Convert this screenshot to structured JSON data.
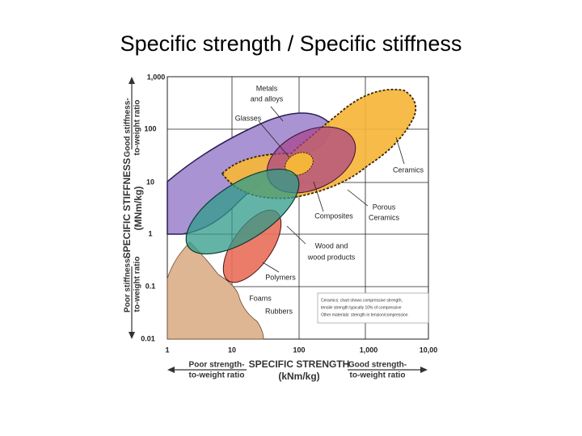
{
  "title": "Specific strength / Specific stiffness",
  "y_axis": {
    "ticks": [
      "1,000",
      "100",
      "10",
      "1",
      "0.1",
      "0.01"
    ],
    "upper_note": [
      "Good stiffness-",
      "to-weight ratio"
    ],
    "label": [
      "SPECIFIC STIFFNESS",
      "(MNm/kg)"
    ],
    "lower_note": [
      "Poor stiffness-",
      "to-weight ratio"
    ]
  },
  "x_axis": {
    "ticks": [
      "1",
      "10",
      "100",
      "1,000",
      "10,00"
    ],
    "left_note": [
      "Poor strength-",
      "to-weight ratio"
    ],
    "label": [
      "SPECIFIC STRENGTH",
      "(kNm/kg)"
    ],
    "right_note": [
      "Good strength-",
      "to-weight ratio"
    ]
  },
  "regions": {
    "metals": [
      "Metals",
      "and alloys"
    ],
    "glasses": [
      "Glasses"
    ],
    "ceramics": [
      "Ceramics"
    ],
    "porous": [
      "Porous",
      "Ceramics"
    ],
    "composites": [
      "Composites"
    ],
    "wood": [
      "Wood and",
      "wood products"
    ],
    "polymers": [
      "Polymers"
    ],
    "foams": [
      "Foams"
    ],
    "rubbers": [
      "Rubbers"
    ]
  },
  "note": [
    "Ceramics: chart shows compressive strength,",
    "tensile strength typically 10% of compressive",
    "Other materials: strength in tension/compression"
  ]
}
